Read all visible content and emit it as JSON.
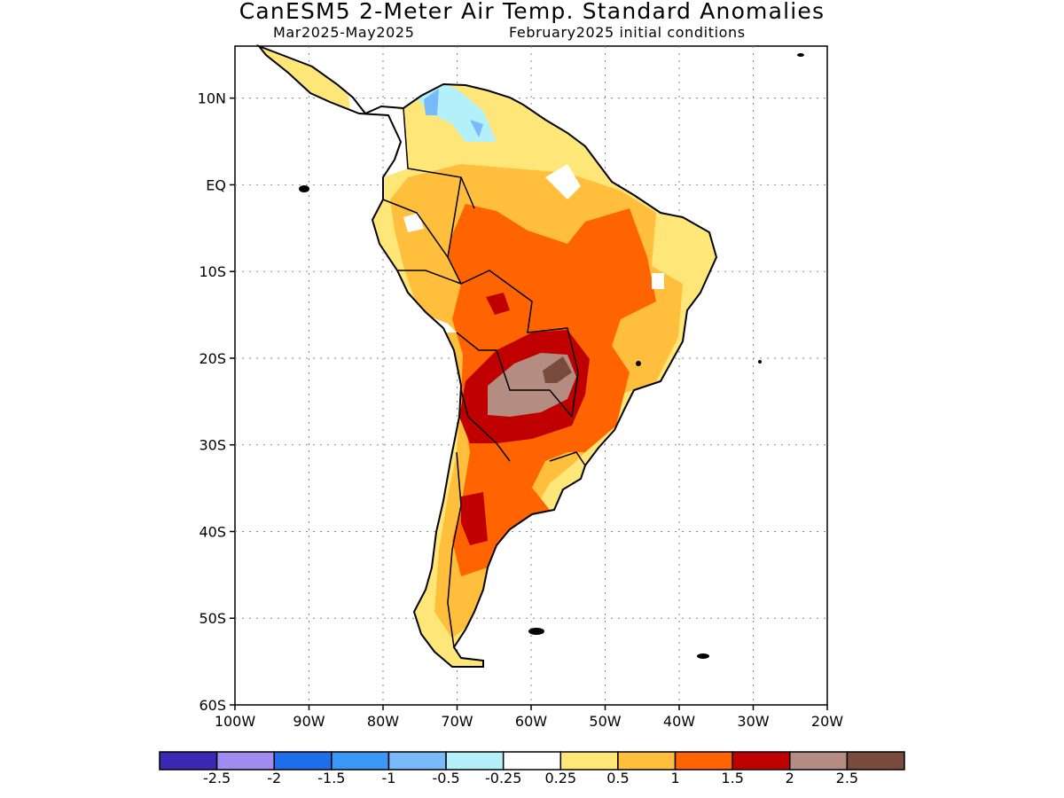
{
  "header": {
    "title": "CanESM5 2-Meter Air Temp. Standard Anomalies",
    "period": "Mar2025-May2025",
    "initial_conditions": "February2025 initial conditions"
  },
  "map": {
    "lon_range": [
      -100,
      -20
    ],
    "lat_range": [
      -60,
      16
    ],
    "lon_ticks": [
      {
        "value": -100,
        "label": "100W"
      },
      {
        "value": -90,
        "label": "90W"
      },
      {
        "value": -80,
        "label": "80W"
      },
      {
        "value": -70,
        "label": "70W"
      },
      {
        "value": -60,
        "label": "60W"
      },
      {
        "value": -50,
        "label": "50W"
      },
      {
        "value": -40,
        "label": "40W"
      },
      {
        "value": -30,
        "label": "30W"
      },
      {
        "value": -20,
        "label": "20W"
      }
    ],
    "lat_ticks": [
      {
        "value": 10,
        "label": "10N"
      },
      {
        "value": 0,
        "label": "EQ"
      },
      {
        "value": -10,
        "label": "10S"
      },
      {
        "value": -20,
        "label": "20S"
      },
      {
        "value": -30,
        "label": "30S"
      },
      {
        "value": -40,
        "label": "40S"
      },
      {
        "value": -50,
        "label": "50S"
      },
      {
        "value": -60,
        "label": "60S"
      }
    ],
    "gridlines": "dotted"
  },
  "legend": {
    "colors": [
      "#3c28b4",
      "#a08cf0",
      "#1e6eeb",
      "#3c96f5",
      "#78b9fa",
      "#b4f0fa",
      "#ffffff",
      "#ffe678",
      "#ffbe3c",
      "#ff6400",
      "#c00000",
      "#b48c82",
      "#784b3c"
    ],
    "labels": [
      "-2.5",
      "-2",
      "-1.5",
      "-1",
      "-0.5",
      "-0.25",
      "0.25",
      "0.5",
      "1",
      "1.5",
      "2",
      "2.5"
    ]
  }
}
